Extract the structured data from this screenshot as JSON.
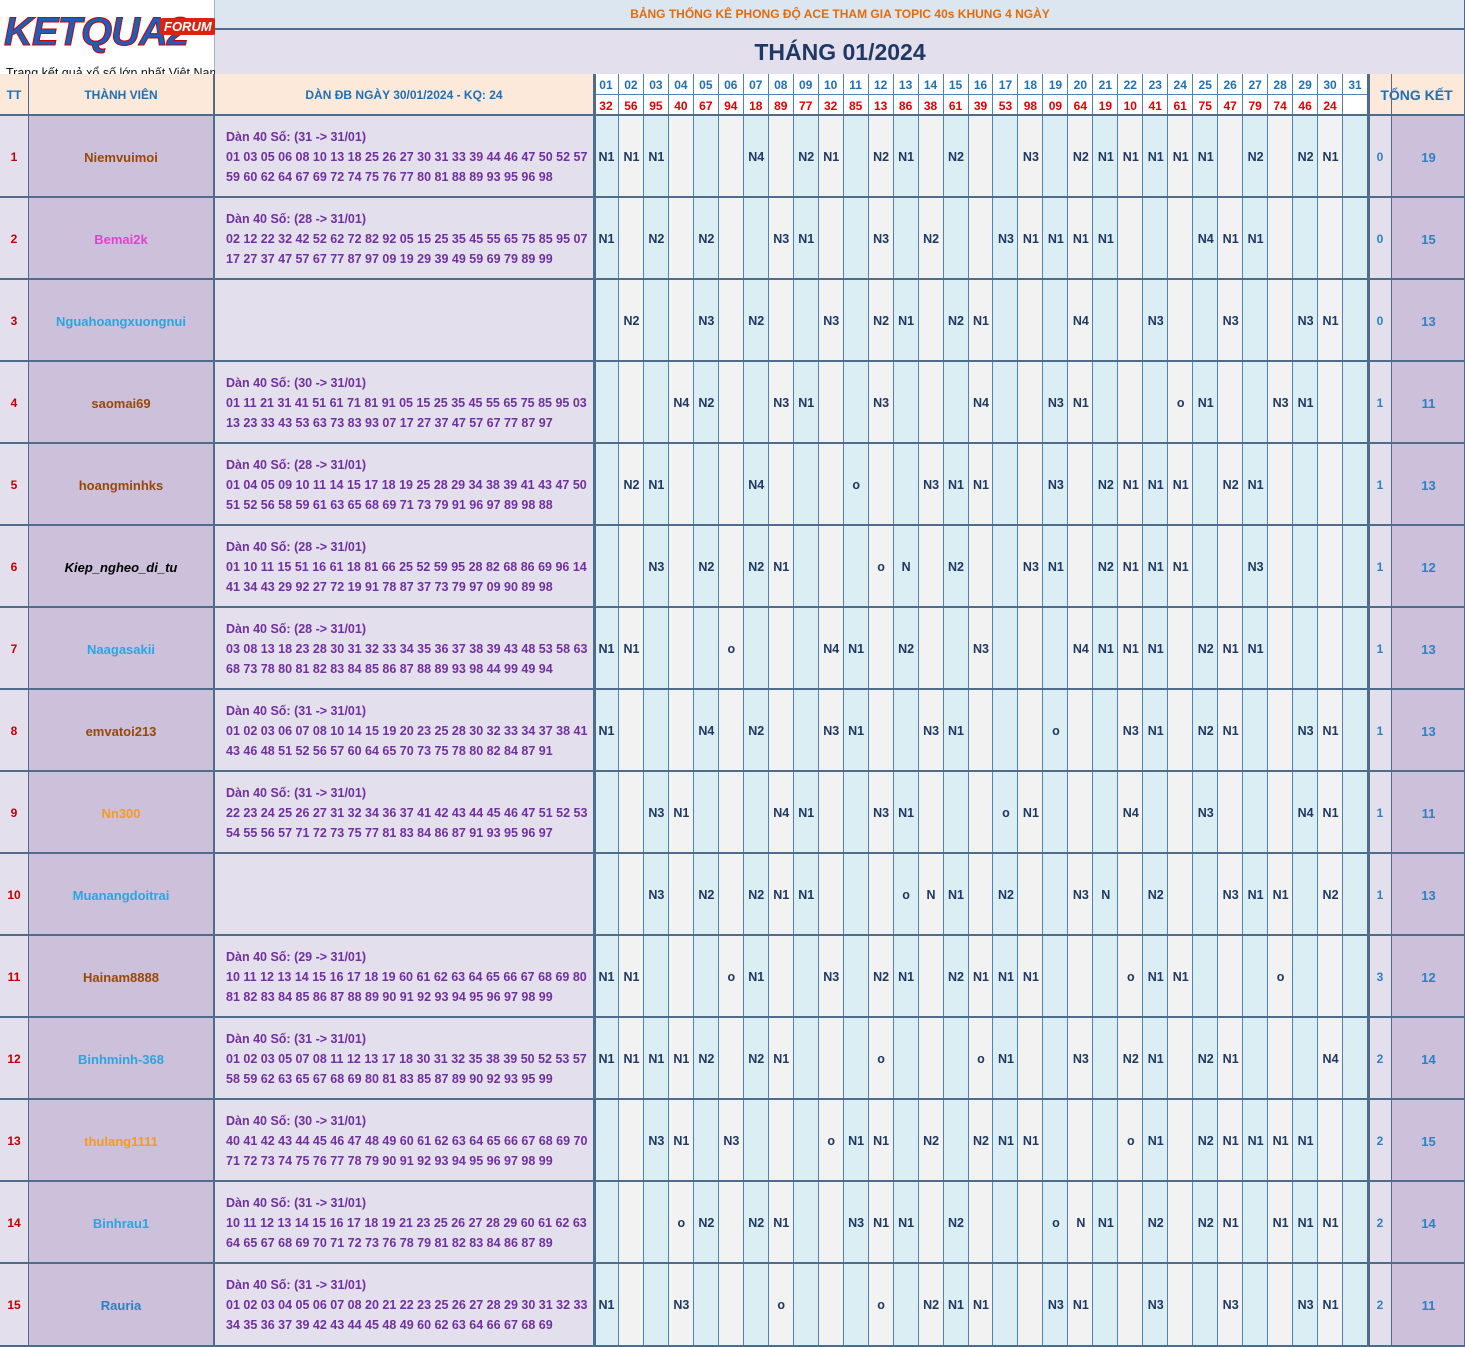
{
  "logo": {
    "name": "KETQUA2",
    "badge": "FORUM",
    "tagline": "Trang kết quả xổ số lớn nhất Việt Nam"
  },
  "header": {
    "title": "BẢNG THỐNG KÊ PHONG ĐỘ ACE THAM GIA TOPIC 40s KHUNG 4 NGÀY",
    "month": "THÁNG 01/2024",
    "tt": "TT",
    "member": "THÀNH VIÊN",
    "dan": "DÀN ĐB NGÀY 30/01/2024 - KQ: 24",
    "summary": "TỔNG KẾT",
    "days": [
      "01",
      "02",
      "03",
      "04",
      "05",
      "06",
      "07",
      "08",
      "09",
      "10",
      "11",
      "12",
      "13",
      "14",
      "15",
      "16",
      "17",
      "18",
      "19",
      "20",
      "21",
      "22",
      "23",
      "24",
      "25",
      "26",
      "27",
      "28",
      "29",
      "30",
      "31"
    ],
    "results": [
      "32",
      "56",
      "95",
      "40",
      "67",
      "94",
      "18",
      "89",
      "77",
      "32",
      "85",
      "13",
      "86",
      "38",
      "61",
      "39",
      "53",
      "98",
      "09",
      "64",
      "19",
      "10",
      "41",
      "61",
      "75",
      "47",
      "79",
      "74",
      "46",
      "24",
      null
    ]
  },
  "rows": [
    {
      "tt": 1,
      "name": "Niemvuimoi",
      "name_color": "#984807",
      "dan": [
        "Dàn 40 Số: (31 -> 31/01)",
        "01 03 05 06 08 10 13 18 25 26 27 30 31 33 39 44 46 47 50 52 57",
        "59 60 62 64 67 69 72 74 75 76 77 80 81 88 89 93 95 96 98"
      ],
      "days": [
        "N1",
        "N1",
        "N1",
        null,
        null,
        null,
        "N4",
        null,
        "N2",
        "N1",
        null,
        "N2",
        "N1",
        null,
        "N2",
        null,
        null,
        "N3",
        null,
        "N2",
        "N1",
        "N1",
        "N1",
        "N1",
        "N1",
        null,
        "N2",
        null,
        "N2",
        "N1",
        null
      ],
      "tk": [
        0,
        19
      ]
    },
    {
      "tt": 2,
      "name": "Bemai2k",
      "name_color": "#e83ed0",
      "dan": [
        "Dàn 40 Số: (28 -> 31/01)",
        "02 12 22 32 42 52 62 72 82 92 05 15 25 35 45 55 65 75 85 95 07",
        "17 27 37 47 57 67 77 87 97 09 19 29 39 49 59 69 79 89 99"
      ],
      "days": [
        "N1",
        null,
        "N2",
        null,
        "N2",
        null,
        null,
        "N3",
        "N1",
        null,
        null,
        "N3",
        null,
        "N2",
        null,
        null,
        "N3",
        "N1",
        "N1",
        "N1",
        "N1",
        null,
        null,
        null,
        "N4",
        "N1",
        "N1",
        null,
        null,
        null,
        null
      ],
      "tk": [
        0,
        15
      ]
    },
    {
      "tt": 3,
      "name": "Nguahoangxuongnui",
      "name_color": "#2aa5e0",
      "days": [
        null,
        "N2",
        null,
        null,
        "N3",
        null,
        "N2",
        null,
        null,
        "N3",
        null,
        "N2",
        "N1",
        null,
        "N2",
        "N1",
        null,
        null,
        null,
        "N4",
        null,
        null,
        "N3",
        null,
        null,
        "N3",
        null,
        null,
        "N3",
        "N1",
        null
      ],
      "tk": [
        0,
        13
      ]
    },
    {
      "tt": 4,
      "name": "saomai69",
      "name_color": "#984807",
      "dan": [
        "Dàn 40 Số: (30 -> 31/01)",
        "01 11 21 31 41 51 61 71 81 91 05 15 25 35 45 55 65 75 85 95 03",
        "13 23 33 43 53 63 73 83 93 07 17 27 37 47 57 67 77 87 97"
      ],
      "days": [
        null,
        null,
        null,
        "N4",
        "N2",
        null,
        null,
        "N3",
        "N1",
        null,
        null,
        "N3",
        null,
        null,
        null,
        "N4",
        null,
        null,
        "N3",
        "N1",
        null,
        null,
        null,
        "o",
        "N1",
        null,
        null,
        "N3",
        "N1",
        null,
        null
      ],
      "tk": [
        1,
        11
      ]
    },
    {
      "tt": 5,
      "name": "hoangminhks",
      "name_color": "#984807",
      "dan": [
        "Dàn 40 Số: (28 -> 31/01)",
        "01 04 05 09 10 11 14 15 17 18 19 25 28 29 34 38 39 41 43 47 50",
        "51 52 56 58 59 61 63 65 68 69 71 73 79 91 96 97 89 98 88"
      ],
      "days": [
        null,
        "N2",
        "N1",
        null,
        null,
        null,
        "N4",
        null,
        null,
        null,
        "o",
        null,
        null,
        "N3",
        "N1",
        "N1",
        null,
        null,
        "N3",
        null,
        "N2",
        "N1",
        "N1",
        "N1",
        null,
        "N2",
        "N1",
        null,
        null,
        null,
        null
      ],
      "tk": [
        1,
        13
      ]
    },
    {
      "tt": 6,
      "name": "Kiep_ngheo_di_tu",
      "name_color": "#000000",
      "name_italic": true,
      "dan": [
        "Dàn 40 Số: (28 -> 31/01)",
        "01 10 11 15 51 16 61 18 81 66 25 52 59 95 28 82 68 86 69 96 14",
        "41 34 43 29 92 27 72 19 91 78 87 37 73 79 97 09 90 89 98"
      ],
      "days": [
        null,
        null,
        "N3",
        null,
        "N2",
        null,
        "N2",
        "N1",
        null,
        null,
        null,
        "o",
        "N",
        null,
        "N2",
        null,
        null,
        "N3",
        "N1",
        null,
        "N2",
        "N1",
        "N1",
        "N1",
        null,
        null,
        "N3",
        null,
        null,
        null,
        null
      ],
      "tk": [
        1,
        12
      ]
    },
    {
      "tt": 7,
      "name": "Naagasakii",
      "name_color": "#2aa5e0",
      "dan": [
        "Dàn 40 Số: (28 -> 31/01)",
        "03 08 13 18 23 28 30 31 32 33 34 35 36 37 38 39 43 48 53 58 63",
        "68 73 78 80 81 82 83 84 85 86 87 88 89 93 98 44 99 49 94"
      ],
      "days": [
        "N1",
        "N1",
        null,
        null,
        null,
        "o",
        null,
        null,
        null,
        "N4",
        "N1",
        null,
        "N2",
        null,
        null,
        "N3",
        null,
        null,
        null,
        "N4",
        "N1",
        "N1",
        "N1",
        null,
        "N2",
        "N1",
        "N1",
        null,
        null,
        null,
        null
      ],
      "tk": [
        1,
        13
      ]
    },
    {
      "tt": 8,
      "name": "emvatoi213",
      "name_color": "#984807",
      "dan": [
        "Dàn 40 Số: (31 -> 31/01)",
        "01 02 03 06 07 08 10 14 15 19 20 23 25 28 30 32 33 34 37 38 41",
        "43 46 48 51 52 56 57 60 64 65 70 73 75 78 80 82 84 87 91"
      ],
      "days": [
        "N1",
        null,
        null,
        null,
        "N4",
        null,
        "N2",
        null,
        null,
        "N3",
        "N1",
        null,
        null,
        "N3",
        "N1",
        null,
        null,
        null,
        "o",
        null,
        null,
        "N3",
        "N1",
        null,
        "N2",
        "N1",
        null,
        null,
        "N3",
        "N1",
        null
      ],
      "tk": [
        1,
        13
      ]
    },
    {
      "tt": 9,
      "name": "Nn300",
      "name_color": "#f59a23",
      "dan": [
        "Dàn 40 Số: (31 -> 31/01)",
        "22 23 24 25 26 27 31 32 34 36 37 41 42 43 44 45 46 47 51 52 53",
        "54 55 56 57 71 72 73 75 77 81 83 84 86 87 91 93 95 96 97"
      ],
      "days": [
        null,
        null,
        "N3",
        "N1",
        null,
        null,
        null,
        "N4",
        "N1",
        null,
        null,
        "N3",
        "N1",
        null,
        null,
        null,
        "o",
        "N1",
        null,
        null,
        null,
        "N4",
        null,
        null,
        "N3",
        null,
        null,
        null,
        "N4",
        "N1",
        null
      ],
      "tk": [
        1,
        11
      ]
    },
    {
      "tt": 10,
      "name": "Muanangdoitrai",
      "name_color": "#2aa5e0",
      "days": [
        null,
        null,
        "N3",
        null,
        "N2",
        null,
        "N2",
        "N1",
        "N1",
        null,
        null,
        null,
        "o",
        "N",
        "N1",
        null,
        "N2",
        null,
        null,
        "N3",
        "N",
        null,
        "N2",
        null,
        null,
        "N3",
        "N1",
        "N1",
        null,
        "N2",
        null
      ],
      "tk": [
        1,
        13
      ]
    },
    {
      "tt": 11,
      "name": "Hainam8888",
      "name_color": "#984807",
      "dan": [
        "Dàn 40 Số: (29 -> 31/01)",
        "10 11 12 13 14 15 16 17 18 19 60 61 62 63 64 65 66 67 68 69 80",
        "81 82 83 84 85 86 87 88 89 90 91 92 93 94 95 96 97 98 99"
      ],
      "days": [
        "N1",
        "N1",
        null,
        null,
        null,
        "o",
        "N1",
        null,
        null,
        "N3",
        null,
        "N2",
        "N1",
        null,
        "N2",
        "N1",
        "N1",
        "N1",
        null,
        null,
        null,
        "o",
        "N1",
        "N1",
        null,
        null,
        null,
        "o",
        null,
        null,
        null
      ],
      "tk": [
        3,
        12
      ]
    },
    {
      "tt": 12,
      "name": "Binhminh-368",
      "name_color": "#2aa5e0",
      "dan": [
        "Dàn 40 Số: (31 -> 31/01)",
        "01 02 03 05 07 08 11 12 13 17 18 30 31 32 35 38 39 50 52 53 57",
        "58 59 62 63 65 67 68 69 80 81 83 85 87 89 90 92 93 95 99"
      ],
      "days": [
        "N1",
        "N1",
        "N1",
        "N1",
        "N2",
        null,
        "N2",
        "N1",
        null,
        null,
        null,
        "o",
        null,
        null,
        null,
        "o",
        "N1",
        null,
        null,
        "N3",
        null,
        "N2",
        "N1",
        null,
        "N2",
        "N1",
        null,
        null,
        null,
        "N4",
        null
      ],
      "tk": [
        2,
        14
      ]
    },
    {
      "tt": 13,
      "name": "thulang1111",
      "name_color": "#f59a23",
      "dan": [
        "Dàn 40 Số: (30 -> 31/01)",
        "40 41 42 43 44 45 46 47 48 49 60 61 62 63 64 65 66 67 68 69 70",
        "71 72 73 74 75 76 77 78 79 90 91 92 93 94 95 96 97 98 99"
      ],
      "days": [
        null,
        null,
        "N3",
        "N1",
        null,
        "N3",
        null,
        null,
        null,
        "o",
        "N1",
        "N1",
        null,
        "N2",
        null,
        "N2",
        "N1",
        "N1",
        null,
        null,
        null,
        "o",
        "N1",
        null,
        "N2",
        "N1",
        "N1",
        "N1",
        "N1",
        null,
        null
      ],
      "tk": [
        2,
        15
      ]
    },
    {
      "tt": 14,
      "name": "Binhrau1",
      "name_color": "#2aa5e0",
      "dan": [
        "Dàn 40 Số: (31 -> 31/01)",
        "10 11 12 13 14 15 16 17 18 19 21 23 25 26 27 28 29 60 61 62 63",
        "64 65 67 68 69 70 71 72 73 76 78 79 81 82 83 84 86 87 89"
      ],
      "days": [
        null,
        null,
        null,
        "o",
        "N2",
        null,
        "N2",
        "N1",
        null,
        null,
        "N3",
        "N1",
        "N1",
        null,
        "N2",
        null,
        null,
        null,
        "o",
        "N",
        "N1",
        null,
        "N2",
        null,
        "N2",
        "N1",
        null,
        "N1",
        "N1",
        "N1",
        null
      ],
      "tk": [
        2,
        14
      ]
    },
    {
      "tt": 15,
      "name": "Rauria",
      "name_color": "#2f80c0",
      "dan": [
        "Dàn 40 Số: (31 -> 31/01)",
        "01 02 03 04 05 06 07 08 20 21 22 23 25 26 27 28 29 30 31 32 33",
        "34 35 36 37 39 42 43 44 45 48 49 60 62 63 64 66 67 68 69"
      ],
      "days": [
        "N1",
        null,
        null,
        "N3",
        null,
        null,
        null,
        "o",
        null,
        null,
        null,
        "o",
        null,
        "N2",
        "N1",
        "N1",
        null,
        null,
        "N3",
        "N1",
        null,
        null,
        "N3",
        null,
        null,
        "N3",
        null,
        null,
        "N3",
        "N1",
        null
      ],
      "tk": [
        2,
        11
      ]
    }
  ]
}
